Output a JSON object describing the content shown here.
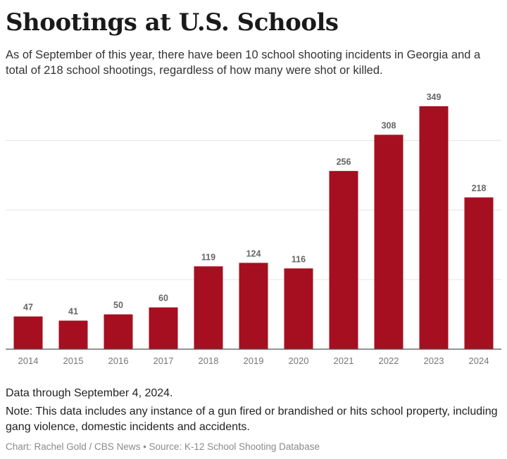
{
  "title": "Shootings at U.S. Schools",
  "subtitle": "As of September of this year, there have been 10 school shooting incidents in Georgia and a total of 218 school shootings, regardless of how many were shot or killed.",
  "footer": {
    "data_through": "Data through September 4, 2024.",
    "note": "Note: This data includes any instance of a gun fired or brandished or hits school property, including gang violence, domestic incidents and accidents.",
    "credit": "Chart: Rachel Gold / CBS News • Source: K-12 School Shooting Database"
  },
  "colors": {
    "bar": "#a50f1f",
    "grid": "#e6e6e6",
    "axis": "#555555"
  },
  "chart_data": {
    "type": "bar",
    "title": "Shootings at U.S. Schools",
    "categories": [
      "2014",
      "2015",
      "2016",
      "2017",
      "2018",
      "2019",
      "2020",
      "2021",
      "2022",
      "2023",
      "2024"
    ],
    "values": [
      47,
      41,
      50,
      60,
      119,
      124,
      116,
      256,
      308,
      349,
      218
    ],
    "data_labels": [
      "47",
      "41",
      "50",
      "60",
      "119",
      "124",
      "116",
      "256",
      "308",
      "349",
      "218"
    ],
    "xlabel": "",
    "ylabel": "",
    "ylim": [
      0,
      360
    ],
    "gridlines": [
      100,
      200,
      300
    ],
    "grid": true,
    "legend": "none"
  }
}
